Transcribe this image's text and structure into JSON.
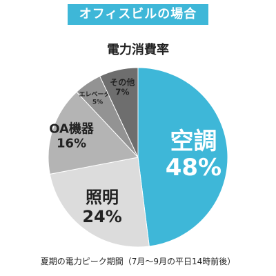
{
  "banner": {
    "text": "オフィスビルの場合",
    "color": "#3eb7d8"
  },
  "chart_data": {
    "type": "pie",
    "title": "電力消費率",
    "slices": [
      {
        "label": "空調",
        "value": 48,
        "value_label": "48%",
        "color": "#3eb7d8",
        "text_color": "#ffffff"
      },
      {
        "label": "照明",
        "value": 24,
        "value_label": "24%",
        "color": "#dcdcdc",
        "text_color": "#222222"
      },
      {
        "label": "OA機器",
        "value": 16,
        "value_label": "16%",
        "color": "#b4b4b4",
        "text_color": "#222222"
      },
      {
        "label": "エレベーター",
        "value": 5,
        "value_label": "5%",
        "color": "#939393",
        "text_color": "#222222"
      },
      {
        "label": "その他",
        "value": 7,
        "value_label": "7%",
        "color": "#6e6e6e",
        "text_color": "#222222"
      }
    ],
    "start": "12 o'clock",
    "direction": "clockwise",
    "legend": "none"
  },
  "caption": "夏期の電力ピーク期間（7月〜9月の平日14時前後）"
}
